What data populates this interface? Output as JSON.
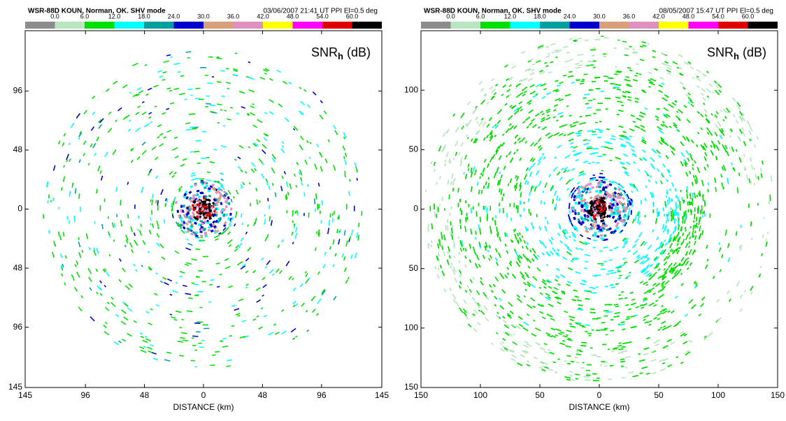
{
  "chart_data": [
    {
      "type": "ppi",
      "title": "WSR-88D  KOUN, Norman, OK.   SHV mode",
      "subtitle": "03/06/2007  21:41 UT  PPI   El=0.5   deg",
      "quantity": "SNR",
      "quantity_sub": "h",
      "unit": "(dB)",
      "x_label": "DISTANCE (km)",
      "colorbar": {
        "colors": [
          "#8c8c8c",
          "#b8e6c0",
          "#00e000",
          "#00ffff",
          "#00a0a0",
          "#0000cc",
          "#d8a078",
          "#e090c0",
          "#ffff00",
          "#ff00ff",
          "#e00000",
          "#000000"
        ],
        "ticks": [
          {
            "value": 0,
            "label": "0.0"
          },
          {
            "value": 6,
            "label": "6.0"
          },
          {
            "value": 12,
            "label": "12.0"
          },
          {
            "value": 18,
            "label": "18.0"
          },
          {
            "value": 24,
            "label": "24.0"
          },
          {
            "value": 30,
            "label": "30.0"
          },
          {
            "value": 36,
            "label": "36.0"
          },
          {
            "value": 42,
            "label": "42.0"
          },
          {
            "value": 48,
            "label": "48.0"
          },
          {
            "value": 54,
            "label": "54.0"
          },
          {
            "value": 60,
            "label": "60.0"
          }
        ]
      },
      "xlim": [
        -145,
        145
      ],
      "ylim": [
        -145,
        145
      ],
      "xticks": [
        {
          "value": -145,
          "label": "145"
        },
        {
          "value": -96,
          "label": "96"
        },
        {
          "value": -48,
          "label": "48"
        },
        0,
        48,
        96,
        145
      ],
      "yticks": [
        96,
        48,
        0,
        {
          "value": -48,
          "label": "48"
        },
        {
          "value": -96,
          "label": "96"
        },
        {
          "value": -145,
          "label": "145"
        }
      ]
    },
    {
      "type": "ppi",
      "title": "WSR-88D  KOUN, Norman, OK.   SHV mode",
      "subtitle": "08/05/2007  15:47 UT  PPI   El=0.5   deg",
      "quantity": "SNR",
      "quantity_sub": "h",
      "unit": "(dB)",
      "x_label": "DISTANCE (km)",
      "colorbar": {
        "colors": [
          "#8c8c8c",
          "#b8e6c0",
          "#00e000",
          "#00ffff",
          "#00a0a0",
          "#0000cc",
          "#d8a078",
          "#e090c0",
          "#ffff00",
          "#ff00ff",
          "#e00000",
          "#000000"
        ],
        "ticks": [
          {
            "value": 0,
            "label": "0.0"
          },
          {
            "value": 6,
            "label": "6.0"
          },
          {
            "value": 12,
            "label": "12.0"
          },
          {
            "value": 18,
            "label": "18.0"
          },
          {
            "value": 24,
            "label": "24.0"
          },
          {
            "value": 30,
            "label": "30.0"
          },
          {
            "value": 36,
            "label": "36.0"
          },
          {
            "value": 42,
            "label": "42.0"
          },
          {
            "value": 48,
            "label": "48.0"
          },
          {
            "value": 54,
            "label": "54.0"
          },
          {
            "value": 60,
            "label": "60.0"
          }
        ]
      },
      "xlim": [
        -150,
        150
      ],
      "ylim": [
        -150,
        150
      ],
      "xticks": [
        {
          "value": -150,
          "label": "150"
        },
        {
          "value": -100,
          "label": "100"
        },
        {
          "value": -50,
          "label": "50"
        },
        0,
        50,
        100,
        150
      ],
      "yticks": [
        100,
        50,
        0,
        {
          "value": -50,
          "label": "50"
        },
        {
          "value": -100,
          "label": "100"
        },
        {
          "value": -150,
          "label": "150"
        }
      ]
    }
  ]
}
